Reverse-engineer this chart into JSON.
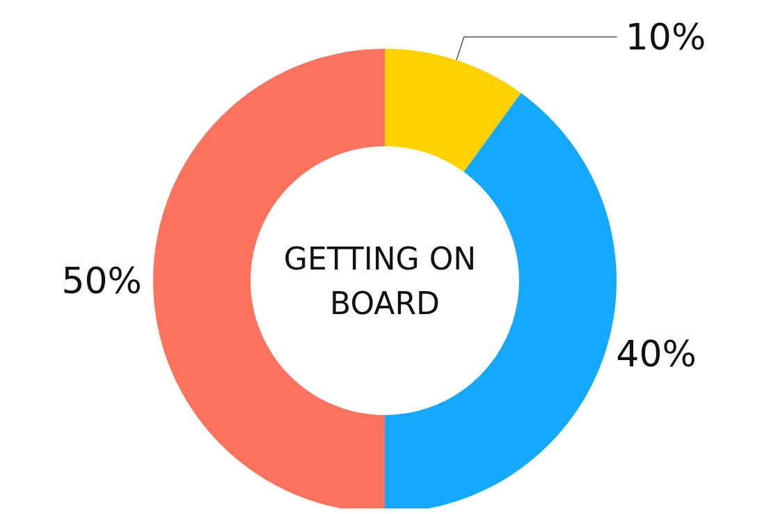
{
  "chart_data": {
    "type": "donut",
    "title": "GETTING ON BOARD",
    "categories": [
      null,
      null,
      null
    ],
    "values": [
      10,
      40,
      50
    ],
    "value_labels": [
      "10%",
      "40%",
      "50%"
    ],
    "colors": [
      "#ffd100",
      "#14a8ff",
      "#ff735e"
    ]
  }
}
